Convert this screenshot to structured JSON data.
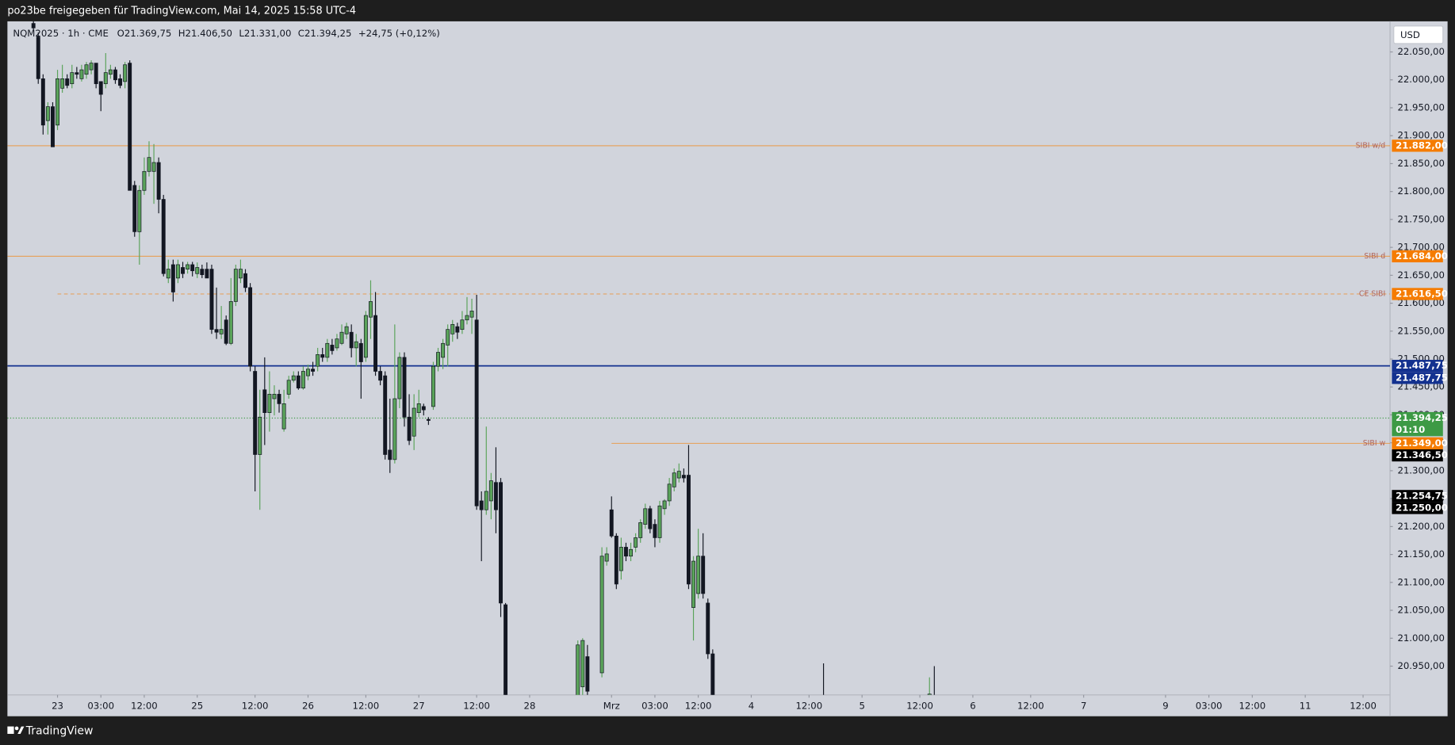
{
  "header": {
    "title": "po23be freigegeben für TradingView.com, Mai 14, 2025 15:58 UTC-4"
  },
  "footer": {
    "brand": "TradingView"
  },
  "chart_data": {
    "type": "candlestick",
    "legend": [
      "NQM2025 · 1h · CME",
      "O21.369,75",
      "H21.406,50",
      "L21.331,00",
      "C21.394,25",
      "+24,75 (+0,12%)"
    ],
    "currency": "USD",
    "colors": {
      "up": "#5aa35a",
      "down": "#131722"
    },
    "xlim": [
      -10.4,
      276.6
    ],
    "ylim": [
      20898.5,
      22104.8
    ],
    "grid": false,
    "xticks": [
      {
        "value": 0,
        "label": "23"
      },
      {
        "value": 9,
        "label": "03:00"
      },
      {
        "value": 18,
        "label": "12:00"
      },
      {
        "value": 29,
        "label": "25"
      },
      {
        "value": 41,
        "label": "12:00"
      },
      {
        "value": 52,
        "label": "26"
      },
      {
        "value": 64,
        "label": "12:00"
      },
      {
        "value": 75,
        "label": "27"
      },
      {
        "value": 87,
        "label": "12:00"
      },
      {
        "value": 98,
        "label": "28"
      },
      {
        "value": 115,
        "label": "Mrz"
      },
      {
        "value": 124,
        "label": "03:00"
      },
      {
        "value": 133,
        "label": "12:00"
      },
      {
        "value": 144,
        "label": "4"
      },
      {
        "value": 156,
        "label": "12:00"
      },
      {
        "value": 167,
        "label": "5"
      },
      {
        "value": 179,
        "label": "12:00"
      },
      {
        "value": 190,
        "label": "6"
      },
      {
        "value": 202,
        "label": "12:00"
      },
      {
        "value": 213,
        "label": "7"
      },
      {
        "value": 230,
        "label": "9"
      },
      {
        "value": 239,
        "label": "03:00"
      },
      {
        "value": 248,
        "label": "12:00"
      },
      {
        "value": 259,
        "label": "11"
      },
      {
        "value": 271,
        "label": "12:00"
      }
    ],
    "yticks": [
      {
        "value": 22050,
        "label": "22.050,00"
      },
      {
        "value": 22000,
        "label": "22.000,00"
      },
      {
        "value": 21950,
        "label": "21.950,00"
      },
      {
        "value": 21900,
        "label": "21.900,00"
      },
      {
        "value": 21850,
        "label": "21.850,00"
      },
      {
        "value": 21800,
        "label": "21.800,00"
      },
      {
        "value": 21750,
        "label": "21.750,00"
      },
      {
        "value": 21700,
        "label": "21.700,00"
      },
      {
        "value": 21650,
        "label": "21.650,00"
      },
      {
        "value": 21600,
        "label": "21.600,00"
      },
      {
        "value": 21550,
        "label": "21.550,00"
      },
      {
        "value": 21500,
        "label": "21.500,00"
      },
      {
        "value": 21450,
        "label": "21.450,00"
      },
      {
        "value": 21400,
        "label": "21.400,00"
      },
      {
        "value": 21350,
        "label": "21.350,00"
      },
      {
        "value": 21300,
        "label": "21.300,00"
      },
      {
        "value": 21250,
        "label": "21.250,00"
      },
      {
        "value": 21200,
        "label": "21.200,00"
      },
      {
        "value": 21150,
        "label": "21.150,00"
      },
      {
        "value": 21100,
        "label": "21.100,00"
      },
      {
        "value": 21050,
        "label": "21.050,00"
      },
      {
        "value": 21000,
        "label": "21.000,00"
      },
      {
        "value": 20950,
        "label": "20.950,00"
      }
    ],
    "x": [
      -5,
      -4,
      -3,
      -2,
      -1,
      0,
      1,
      2,
      3,
      4,
      5,
      6,
      7,
      8,
      9,
      10,
      11,
      12,
      13,
      14,
      15,
      16,
      17,
      18,
      19,
      20,
      21,
      22,
      23,
      24,
      25,
      26,
      27,
      28,
      29,
      30,
      31,
      32,
      33,
      34,
      35,
      36,
      37,
      38,
      39,
      40,
      41,
      42,
      43,
      44,
      45,
      46,
      47,
      48,
      49,
      50,
      51,
      52,
      53,
      54,
      55,
      56,
      57,
      58,
      59,
      60,
      61,
      62,
      63,
      64,
      65,
      66,
      67,
      68,
      69,
      70,
      71,
      72,
      73,
      74,
      75,
      76,
      77,
      78,
      79,
      80,
      81,
      82,
      83,
      84,
      85,
      86,
      87,
      88,
      89,
      90,
      91,
      92,
      93,
      108,
      109,
      110,
      113,
      114,
      115,
      116,
      117,
      118,
      119,
      120,
      121,
      122,
      123,
      124,
      125,
      126,
      127,
      128,
      129,
      130,
      131,
      132,
      133,
      134,
      135,
      136,
      159,
      181,
      182
    ],
    "open": [
      22101,
      22077,
      22002,
      21927,
      21952,
      21919,
      21985,
      22002,
      21993,
      22013,
      22002,
      22010,
      22018,
      22030,
      21997,
      21993,
      22010,
      22018,
      22002,
      21997,
      22030,
      21811,
      21728,
      21802,
      21836,
      21836,
      21852,
      21786,
      21645,
      21669,
      21645,
      21664,
      21661,
      21669,
      21653,
      21661,
      21661,
      21661,
      21553,
      21545,
      21570,
      21528,
      21603,
      21645,
      21653,
      21628,
      21478,
      21329,
      21445,
      21404,
      21429,
      21437,
      21375,
      21437,
      21462,
      21470,
      21448,
      21470,
      21482,
      21487,
      21508,
      21503,
      21525,
      21520,
      21528,
      21545,
      21548,
      21520,
      21528,
      21503,
      21575,
      21578,
      21478,
      21470,
      21337,
      21320,
      21429,
      21503,
      21396,
      21362,
      21404,
      21415,
      21392,
      21415,
      21487,
      21503,
      21525,
      21545,
      21558,
      21553,
      21570,
      21575,
      21570,
      21246,
      21230,
      21246,
      21279,
      21279,
      21060,
      20880,
      20913,
      20967,
      20938,
      21138,
      21230,
      21183,
      21121,
      21163,
      21147,
      21163,
      21180,
      21204,
      21232,
      21204,
      21180,
      21232,
      21246,
      21271,
      21287,
      21292,
      21292,
      21055,
      21080,
      21147,
      21063,
      20972,
      20870,
      20880,
      20890
    ],
    "high": [
      22110,
      22085,
      22010,
      21960,
      21960,
      22018,
      22027,
      22010,
      22027,
      22023,
      22027,
      22032,
      22035,
      22030,
      21997,
      22048,
      22027,
      22023,
      22010,
      22032,
      22035,
      21819,
      21811,
      21861,
      21890,
      21885,
      21861,
      21794,
      21678,
      21678,
      21678,
      21674,
      21674,
      21674,
      21673,
      21669,
      21673,
      21669,
      21628,
      21595,
      21578,
      21645,
      21669,
      21678,
      21661,
      21636,
      21487,
      21445,
      21503,
      21478,
      21453,
      21445,
      21445,
      21470,
      21478,
      21478,
      21487,
      21490,
      21495,
      21520,
      21520,
      21536,
      21536,
      21545,
      21562,
      21565,
      21562,
      21545,
      21536,
      21586,
      21641,
      21620,
      21487,
      21478,
      21429,
      21562,
      21512,
      21512,
      21437,
      21437,
      21445,
      21420,
      21396,
      21495,
      21520,
      21536,
      21562,
      21570,
      21565,
      21586,
      21611,
      21608,
      21615,
      21263,
      21379,
      21296,
      21342,
      21287,
      21063,
      20996,
      21000,
      20988,
      21163,
      21163,
      21254,
      21188,
      21180,
      21171,
      21171,
      21188,
      21213,
      21241,
      21237,
      21213,
      21246,
      21249,
      21287,
      21304,
      21313,
      21304,
      21346,
      21147,
      21196,
      21188,
      21071,
      20980,
      20955,
      20930,
      20950
    ],
    "low": [
      22088,
      21993,
      21902,
      21902,
      21880,
      21910,
      21977,
      21985,
      21985,
      22002,
      21997,
      22002,
      22010,
      21985,
      21944,
      21985,
      22002,
      21993,
      21985,
      21985,
      21802,
      21719,
      21669,
      21794,
      21827,
      21778,
      21761,
      21648,
      21636,
      21603,
      21636,
      21645,
      21653,
      21648,
      21645,
      21645,
      21645,
      21545,
      21536,
      21536,
      21525,
      21525,
      21595,
      21636,
      21620,
      21478,
      21263,
      21230,
      21346,
      21370,
      21399,
      21404,
      21370,
      21429,
      21458,
      21445,
      21445,
      21462,
      21470,
      21478,
      21495,
      21495,
      21508,
      21515,
      21525,
      21536,
      21503,
      21487,
      21429,
      21495,
      21536,
      21470,
      21453,
      21320,
      21296,
      21313,
      21412,
      21379,
      21346,
      21337,
      21396,
      21399,
      21382,
      21409,
      21478,
      21482,
      21487,
      21531,
      21536,
      21545,
      21562,
      21545,
      21230,
      21138,
      21221,
      21213,
      21188,
      21038,
      20880,
      20880,
      20880,
      20880,
      20930,
      21130,
      21180,
      21088,
      21105,
      21138,
      21138,
      21154,
      21171,
      21196,
      21188,
      21163,
      21171,
      21221,
      21237,
      21263,
      21279,
      21279,
      21088,
      20996,
      21071,
      21071,
      20963,
      20880,
      20860,
      20875,
      20880
    ],
    "close": [
      22093,
      22002,
      21919,
      21952,
      21880,
      22002,
      22002,
      21990,
      22013,
      22010,
      22018,
      22027,
      22030,
      21993,
      21974,
      22013,
      22018,
      22000,
      21990,
      22027,
      21802,
      21728,
      21802,
      21836,
      21861,
      21852,
      21786,
      21653,
      21661,
      21620,
      21669,
      21653,
      21669,
      21658,
      21664,
      21651,
      21645,
      21553,
      21548,
      21553,
      21528,
      21603,
      21661,
      21661,
      21628,
      21487,
      21329,
      21396,
      21404,
      21437,
      21437,
      21420,
      21420,
      21462,
      21470,
      21448,
      21478,
      21482,
      21478,
      21508,
      21503,
      21528,
      21515,
      21536,
      21548,
      21558,
      21520,
      21531,
      21495,
      21578,
      21603,
      21478,
      21462,
      21329,
      21320,
      21429,
      21503,
      21396,
      21354,
      21412,
      21420,
      21409,
      21390,
      21487,
      21512,
      21528,
      21553,
      21562,
      21548,
      21570,
      21578,
      21586,
      21237,
      21230,
      21263,
      21282,
      21230,
      21063,
      20880,
      20988,
      20996,
      20905,
      21147,
      21151,
      21183,
      21097,
      21163,
      21147,
      21159,
      21180,
      21207,
      21232,
      21196,
      21180,
      21237,
      21246,
      21276,
      21296,
      21299,
      21287,
      21097,
      21138,
      21147,
      21080,
      20972,
      20880,
      20865,
      20900,
      20885
    ],
    "levels": [
      {
        "name": "SIBI w/d",
        "value": 21882,
        "label": "21.882,00",
        "color": "#f57c00",
        "style": "solid"
      },
      {
        "name": "SIBI d",
        "value": 21684,
        "label": "21.684,00",
        "color": "#f57c00",
        "style": "solid"
      },
      {
        "name": "CE SIBI",
        "value": 21616.5,
        "label": "21.616,50",
        "color": "#f57c00",
        "style": "dashed",
        "start": 0
      },
      {
        "name": "SIBI w",
        "value": 21349,
        "label": "21.349,00",
        "color": "#f57c00",
        "style": "solid",
        "start": 115
      }
    ],
    "price_line": {
      "value": 21487.75,
      "labels": [
        "21.487,75",
        "21.487,75"
      ],
      "color": "#13318f"
    },
    "last_price": {
      "value": 21394.25,
      "label": "21.394,25",
      "countdown": "01:10",
      "color": "#3d9a45"
    },
    "markers": [
      {
        "value": 21346.5,
        "label": "21.346,50"
      },
      {
        "value": 21254.75,
        "label": "21.254,75"
      },
      {
        "value": 21250,
        "label": "21.250,00"
      }
    ]
  }
}
